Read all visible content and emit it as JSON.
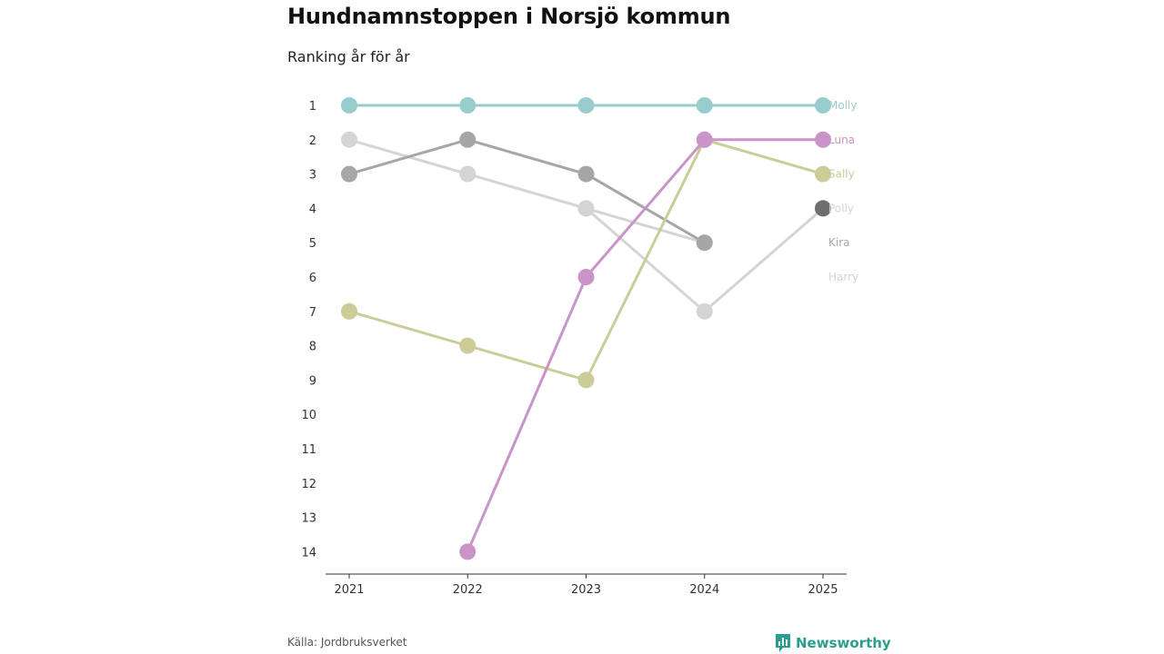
{
  "title": "Hundnamnstoppen i Norsjö kommun",
  "subtitle": "Ranking år för år",
  "source": "Källa: Jordbruksverket",
  "brand": {
    "name": "Newsworthy",
    "icon": "newsworthy-logo-icon",
    "color": "#2a9d8f"
  },
  "chart_data": {
    "type": "line",
    "subtype": "bump",
    "title": "Hundnamnstoppen i Norsjö kommun",
    "subtitle": "Ranking år för år",
    "xlabel": "",
    "ylabel": "",
    "x": [
      "2021",
      "2022",
      "2023",
      "2024",
      "2025"
    ],
    "y_ticks": [
      "1",
      "2",
      "3",
      "4",
      "5",
      "6",
      "7",
      "8",
      "9",
      "10",
      "11",
      "12",
      "13",
      "14"
    ],
    "ylim": [
      1,
      14
    ],
    "y_inverted": true,
    "series": [
      {
        "name": "Harry",
        "color": "#d4d4d4",
        "values": [
          2,
          3,
          4,
          5,
          null
        ]
      },
      {
        "name": "Polly",
        "color": "#d4d4d4",
        "values": [
          7,
          null,
          4,
          7,
          4
        ]
      },
      {
        "name": "Kira",
        "color": "#a6a6a6",
        "values": [
          3,
          2,
          3,
          5,
          null
        ]
      },
      {
        "name": "Sally",
        "color": "#cccc99",
        "values": [
          7,
          8,
          9,
          2,
          3
        ]
      },
      {
        "name": "Luna",
        "color": "#c994c7",
        "values": [
          null,
          14,
          6,
          2,
          2
        ]
      },
      {
        "name": "Molly",
        "color": "#99cccc",
        "values": [
          1,
          1,
          1,
          1,
          1
        ]
      }
    ],
    "end_labels": [
      {
        "name": "Molly",
        "color": "#99cccc",
        "rank": 1
      },
      {
        "name": "Luna",
        "color": "#c994c7",
        "rank": 2
      },
      {
        "name": "Sally",
        "color": "#cccc99",
        "rank": 3
      },
      {
        "name": "Polly",
        "color": "#d4d4d4",
        "rank": 4
      },
      {
        "name": "Kira",
        "color": "#a6a6a6",
        "rank": 5
      },
      {
        "name": "Harry",
        "color": "#d4d4d4",
        "rank": 6
      }
    ],
    "special_markers": [
      {
        "year": "2025",
        "rank": 4,
        "color": "#6e6e6e"
      }
    ]
  }
}
